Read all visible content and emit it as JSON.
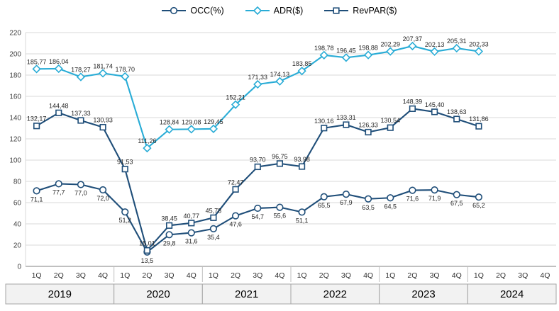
{
  "chart_data": {
    "type": "line",
    "categories": [
      "1Q",
      "2Q",
      "3Q",
      "4Q",
      "1Q",
      "2Q",
      "3Q",
      "4Q",
      "1Q",
      "2Q",
      "3Q",
      "4Q",
      "1Q",
      "2Q",
      "3Q",
      "4Q",
      "1Q",
      "2Q",
      "3Q",
      "4Q",
      "1Q",
      "2Q",
      "3Q",
      "4Q"
    ],
    "year_groups": [
      {
        "label": "2019",
        "span": 4
      },
      {
        "label": "2020",
        "span": 4
      },
      {
        "label": "2021",
        "span": 4
      },
      {
        "label": "2022",
        "span": 4
      },
      {
        "label": "2023",
        "span": 4
      },
      {
        "label": "2024",
        "span": 4
      }
    ],
    "y_axis": {
      "min": 0,
      "max": 220,
      "step": 20,
      "tick_labels": [
        "0",
        "20",
        "40",
        "60",
        "80",
        "100",
        "120",
        "140",
        "160",
        "180",
        "200",
        "220"
      ]
    },
    "grid": true,
    "legend_position": "top",
    "decimal_separator": ",",
    "series": [
      {
        "name": "OCC(%)",
        "marker": "circle",
        "color": "#1F4E79",
        "decimals": 1,
        "label_pos": "below",
        "values": [
          71.1,
          77.7,
          77.0,
          72.0,
          51.2,
          13.5,
          29.8,
          31.6,
          35.4,
          47.6,
          54.7,
          55.6,
          51.1,
          65.5,
          67.9,
          63.5,
          64.5,
          71.6,
          71.9,
          67.5,
          65.2
        ]
      },
      {
        "name": "ADR($)",
        "marker": "diamond",
        "color": "#29ACD6",
        "decimals": 2,
        "label_pos": "above",
        "values": [
          185.77,
          186.04,
          178.27,
          181.74,
          178.7,
          111.26,
          128.84,
          129.08,
          129.45,
          152.21,
          171.33,
          174.13,
          183.85,
          198.78,
          196.45,
          198.88,
          202.29,
          207.37,
          202.13,
          205.31,
          202.33
        ]
      },
      {
        "name": "RevPAR($)",
        "marker": "square",
        "color": "#1F4E79",
        "decimals": 2,
        "label_pos": "above",
        "values": [
          132.17,
          144.48,
          137.33,
          130.93,
          91.53,
          15.01,
          38.45,
          40.77,
          45.78,
          72.47,
          93.7,
          96.75,
          93.98,
          130.16,
          133.31,
          126.33,
          130.54,
          148.39,
          145.4,
          138.63,
          131.86
        ]
      }
    ],
    "colors": {
      "grid": "#D9D9D9",
      "axis": "#808080",
      "tick_text": "#404040",
      "data_label": "#262626",
      "year_band_fill": "#F2F2F2",
      "year_band_border": "#A6A6A6"
    }
  }
}
